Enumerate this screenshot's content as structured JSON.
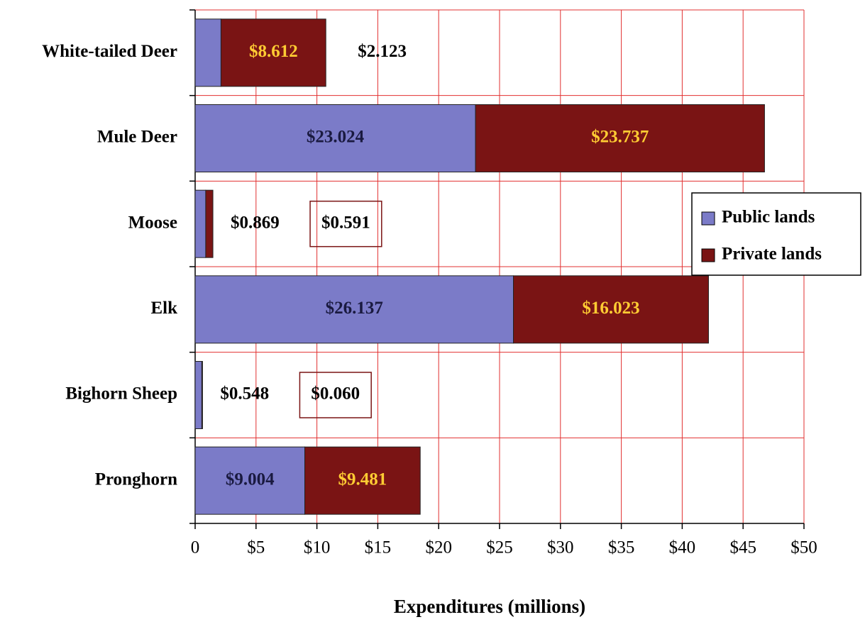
{
  "chart_data": {
    "type": "stacked-hbar",
    "x_label": "Expenditures (millions)",
    "categories": [
      "White-tailed Deer",
      "Mule Deer",
      "Moose",
      "Elk",
      "Bighorn Sheep",
      "Pronghorn"
    ],
    "series": [
      {
        "name": "Public lands",
        "color": "#7b7bc8",
        "label_color": "#1a1a40",
        "values": [
          2.123,
          23.024,
          0.869,
          26.137,
          0.548,
          9.004
        ],
        "value_labels": [
          "$2.123",
          "$23.024",
          "$0.869",
          "$26.137",
          "$0.548",
          "$9.004"
        ]
      },
      {
        "name": "Private lands",
        "color": "#7a1414",
        "label_color": "#ffcc33",
        "values": [
          8.612,
          23.737,
          0.591,
          16.023,
          0.06,
          9.481
        ],
        "value_labels": [
          "$8.612",
          "$23.737",
          "$0.591",
          "$16.023",
          "$0.060",
          "$9.481"
        ]
      }
    ],
    "xlim": [
      0,
      50
    ],
    "xticks": [
      0,
      {
        "value": 5,
        "label": "$5"
      },
      {
        "value": 10,
        "label": "$10"
      },
      {
        "value": 15,
        "label": "$15"
      },
      {
        "value": 20,
        "label": "$20"
      },
      {
        "value": 25,
        "label": "$25"
      },
      {
        "value": 30,
        "label": "$30"
      },
      {
        "value": 35,
        "label": "$35"
      },
      {
        "value": 40,
        "label": "$40"
      },
      {
        "value": 45,
        "label": "$45"
      },
      {
        "value": 50,
        "label": "$50"
      }
    ],
    "grid": true,
    "legend": "right"
  }
}
